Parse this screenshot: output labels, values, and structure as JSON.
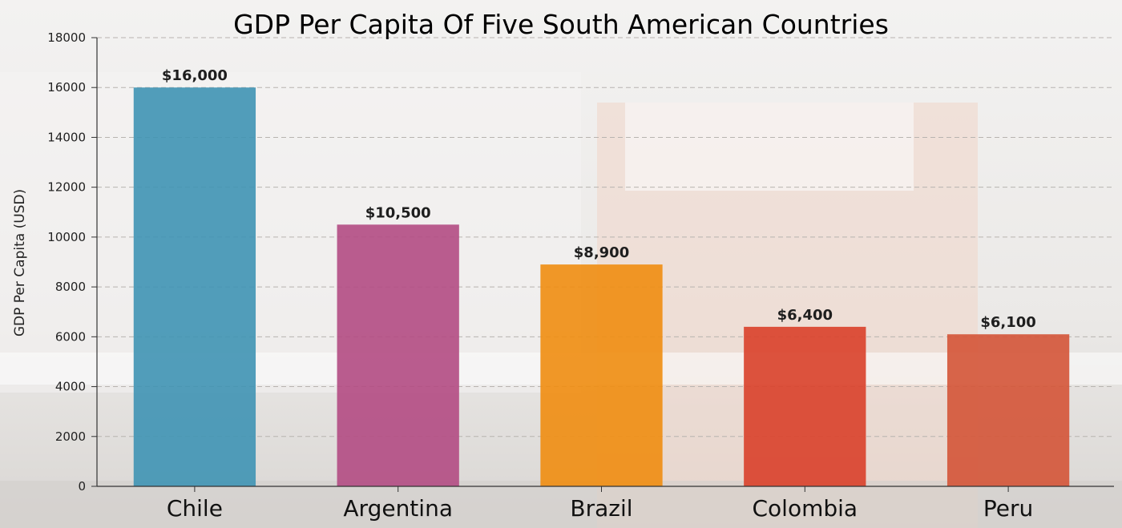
{
  "chart_data": {
    "type": "bar",
    "title": "GDP Per Capita Of Five South American Countries",
    "xlabel": "",
    "ylabel": "GDP Per Capita (USD)",
    "categories": [
      "Chile",
      "Argentina",
      "Brazil",
      "Colombia",
      "Peru"
    ],
    "values": [
      16000,
      10500,
      8900,
      6400,
      6100
    ],
    "data_labels": [
      "$16,000",
      "$10,500",
      "$8,900",
      "$6,400",
      "$6,100"
    ],
    "colors": [
      "#3f93b4",
      "#b24b83",
      "#ef8d11",
      "#d9402a",
      "#d45437"
    ],
    "ylim": [
      0,
      18000
    ],
    "yticks": [
      0,
      2000,
      4000,
      6000,
      8000,
      10000,
      12000,
      14000,
      16000,
      18000
    ],
    "grid": true,
    "legend": "none"
  }
}
